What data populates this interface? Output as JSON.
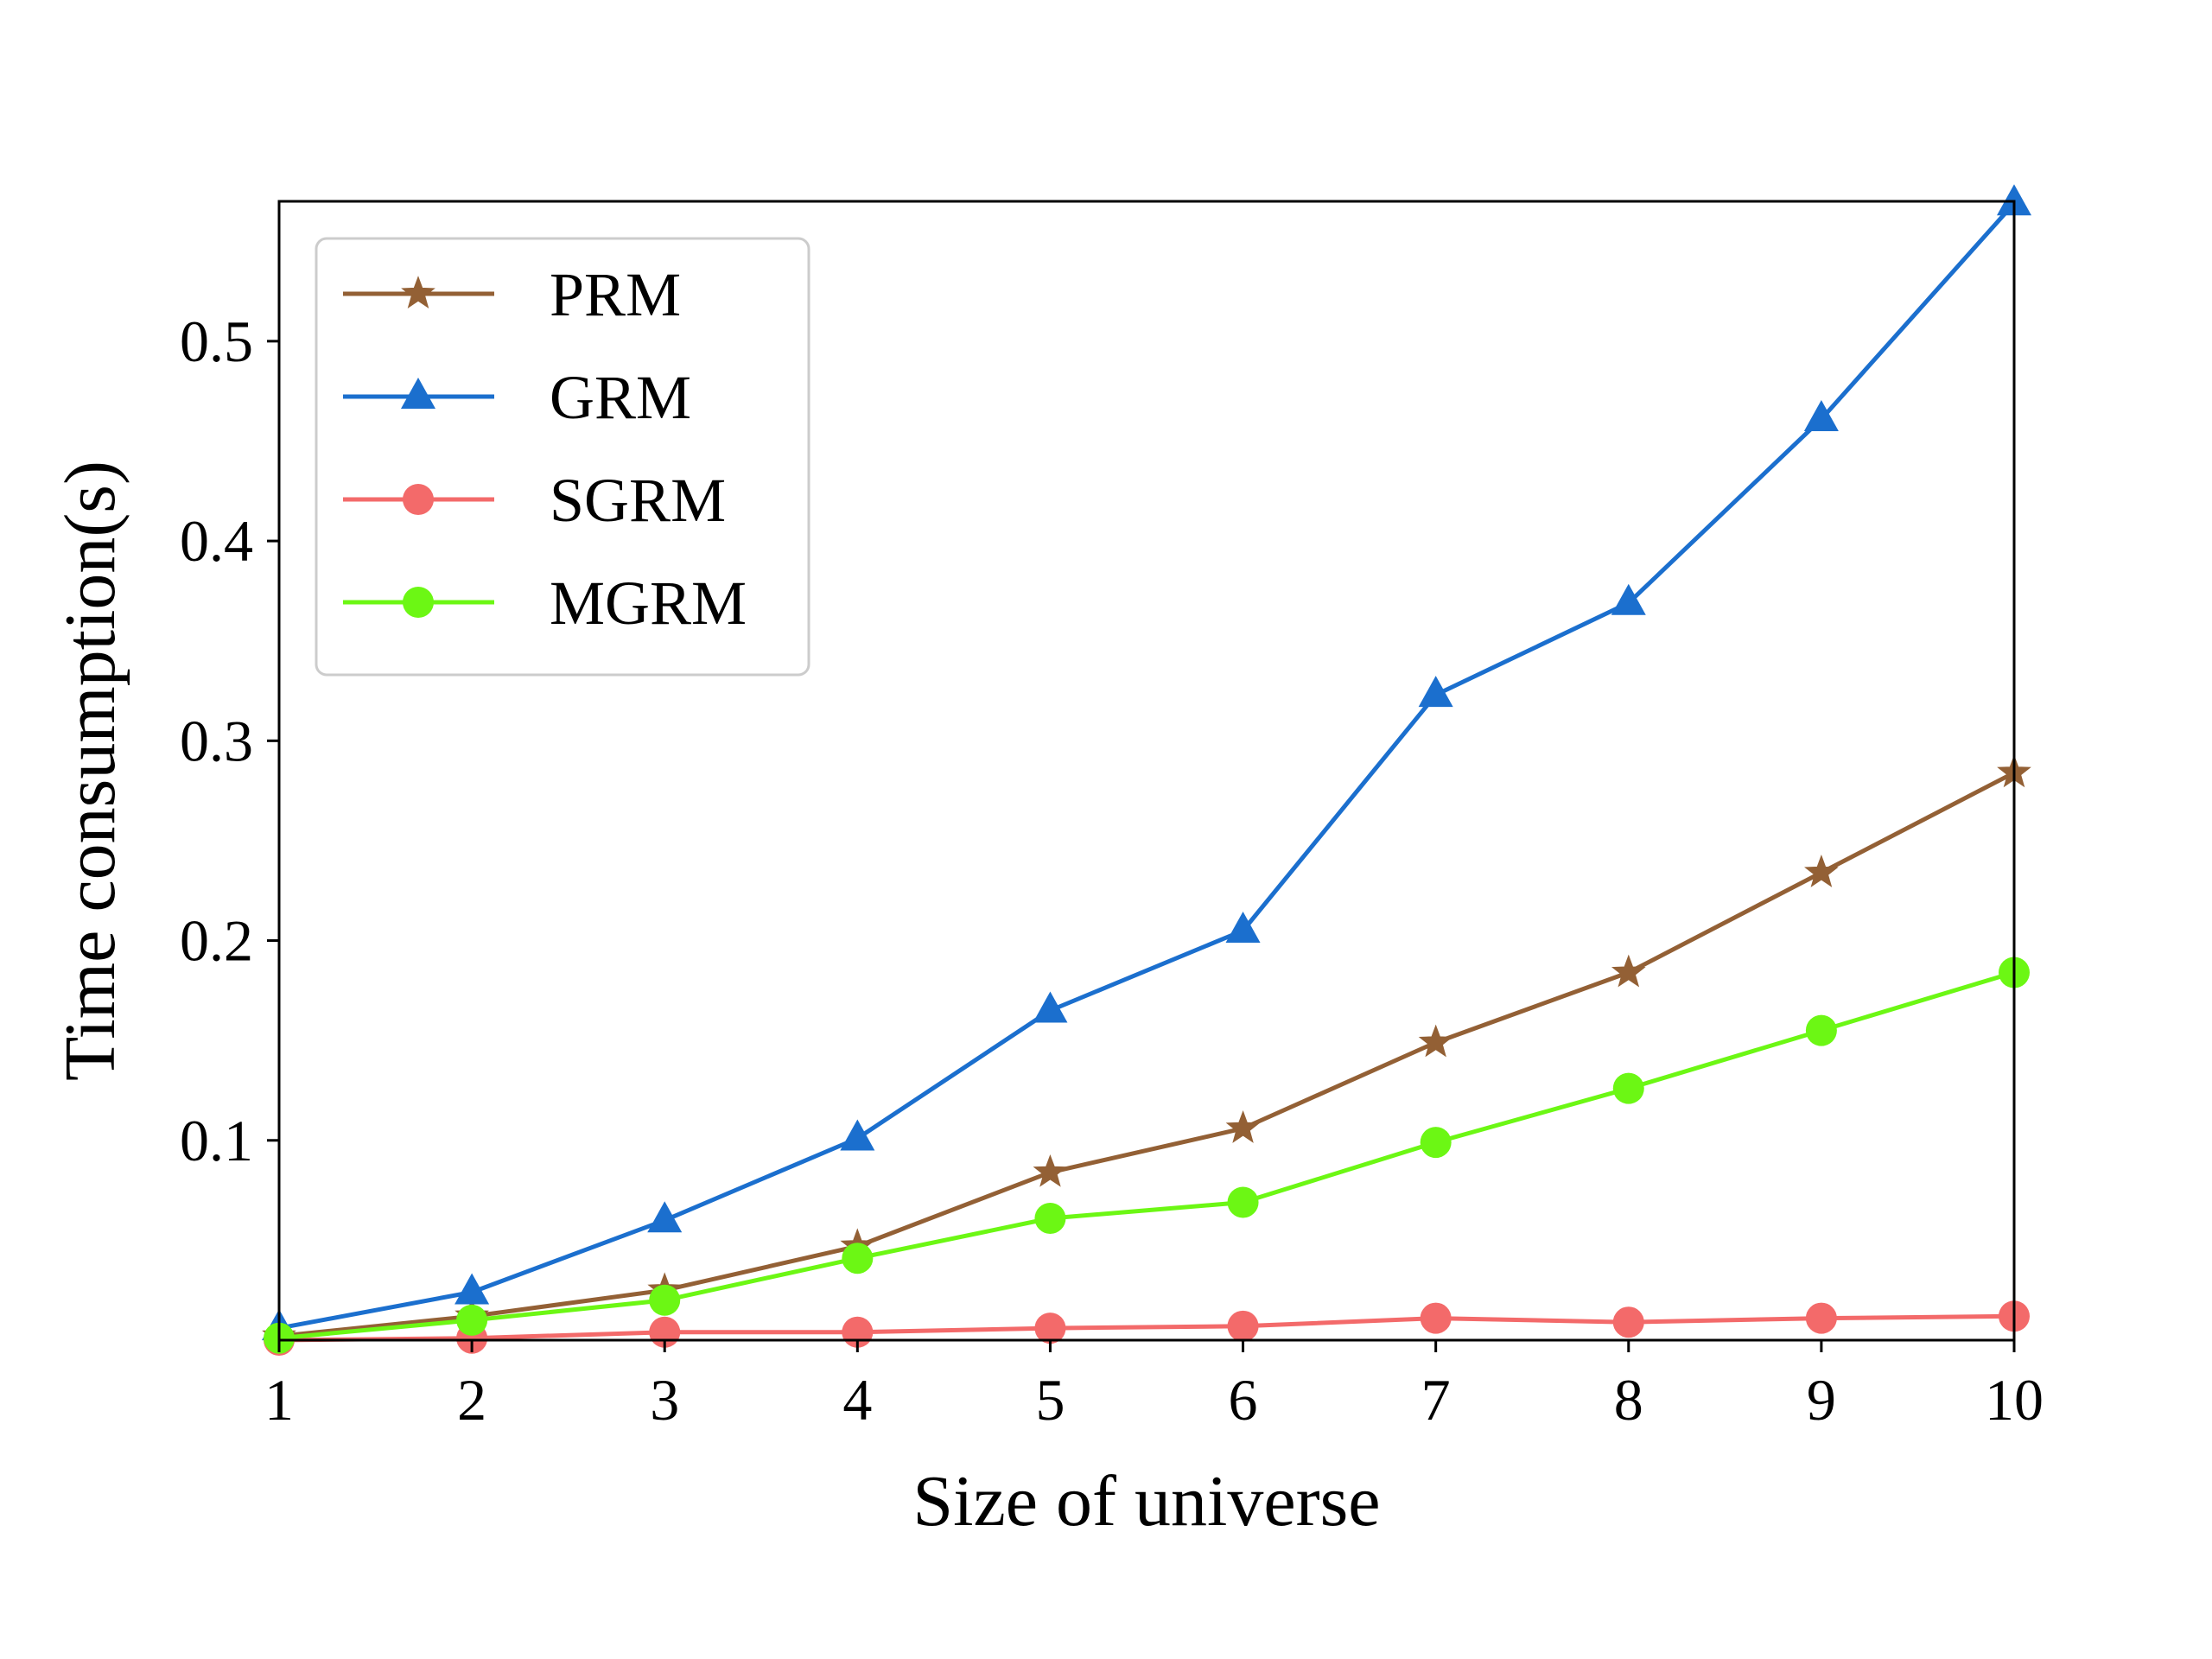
{
  "chart_data": {
    "type": "line",
    "title": "",
    "xlabel": "Size of universe",
    "ylabel": "Time consumption(s)",
    "x": [
      1,
      2,
      3,
      4,
      5,
      6,
      7,
      8,
      9,
      10
    ],
    "xlim": [
      1,
      10
    ],
    "ylim": [
      0,
      0.57
    ],
    "xticks": [
      "1",
      "2",
      "3",
      "4",
      "5",
      "6",
      "7",
      "8",
      "9",
      "10"
    ],
    "yticks": [
      {
        "value": 0.1,
        "label": "0.1"
      },
      {
        "value": 0.2,
        "label": "0.2"
      },
      {
        "value": 0.3,
        "label": "0.3"
      },
      {
        "value": 0.4,
        "label": "0.4"
      },
      {
        "value": 0.5,
        "label": "0.5"
      }
    ],
    "grid": false,
    "legend_position": "top-left",
    "series": [
      {
        "name": "PRM",
        "color": "#936035",
        "marker": "star",
        "values": [
          0.002,
          0.012,
          0.025,
          0.047,
          0.084,
          0.106,
          0.149,
          0.184,
          0.234,
          0.284
        ]
      },
      {
        "name": "GRM",
        "color": "#1b6fce",
        "marker": "triangle",
        "values": [
          0.006,
          0.024,
          0.06,
          0.101,
          0.165,
          0.205,
          0.323,
          0.369,
          0.461,
          0.569
        ]
      },
      {
        "name": "SGRM",
        "color": "#f36a6a",
        "marker": "circle",
        "values": [
          0.0,
          0.001,
          0.004,
          0.004,
          0.006,
          0.007,
          0.011,
          0.009,
          0.011,
          0.012
        ]
      },
      {
        "name": "MGRM",
        "color": "#6cf714",
        "marker": "circle",
        "values": [
          0.001,
          0.01,
          0.02,
          0.041,
          0.061,
          0.069,
          0.099,
          0.126,
          0.155,
          0.184
        ]
      }
    ]
  }
}
